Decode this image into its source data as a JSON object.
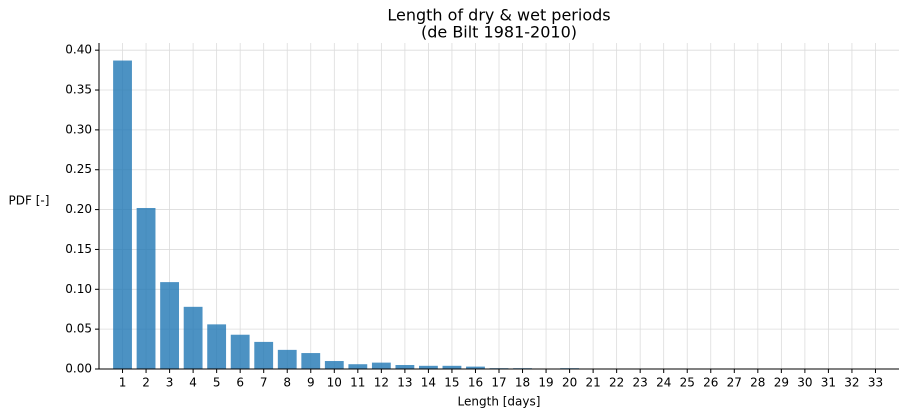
{
  "chart_data": {
    "type": "bar",
    "title": "Length of dry & wet periods",
    "subtitle": "(de Bilt 1981-2010)",
    "xlabel": "Length [days]",
    "ylabel": "PDF [-]",
    "x": [
      1,
      2,
      3,
      4,
      5,
      6,
      7,
      8,
      9,
      10,
      11,
      12,
      13,
      14,
      15,
      16,
      17,
      18,
      19,
      20,
      21,
      22,
      23,
      24,
      25,
      26,
      27,
      28,
      29,
      30,
      31,
      32,
      33
    ],
    "values": [
      0.387,
      0.202,
      0.109,
      0.078,
      0.056,
      0.043,
      0.034,
      0.024,
      0.02,
      0.01,
      0.006,
      0.008,
      0.005,
      0.004,
      0.004,
      0.003,
      0.001,
      0.001,
      0,
      0.001,
      0,
      0,
      0,
      0,
      0,
      0,
      0,
      0,
      0,
      0,
      0,
      0,
      0
    ],
    "color": "#1f77b4",
    "alpha": 0.8,
    "xlim": [
      0,
      34
    ],
    "xticks": [
      1,
      2,
      3,
      4,
      5,
      6,
      7,
      8,
      9,
      10,
      11,
      12,
      13,
      14,
      15,
      16,
      17,
      18,
      19,
      20,
      21,
      22,
      23,
      24,
      25,
      26,
      27,
      28,
      29,
      30,
      31,
      32,
      33
    ],
    "ylim": [
      0,
      0.409
    ],
    "yticks": [
      {
        "value": 0,
        "label": "0.00"
      },
      {
        "value": 0.05,
        "label": "0.05"
      },
      {
        "value": 0.1,
        "label": "0.10"
      },
      {
        "value": 0.15,
        "label": "0.15"
      },
      {
        "value": 0.2,
        "label": "0.20"
      },
      {
        "value": 0.25,
        "label": "0.25"
      },
      {
        "value": 0.3,
        "label": "0.30"
      },
      {
        "value": 0.35,
        "label": "0.35"
      },
      {
        "value": 0.4,
        "label": "0.40"
      }
    ],
    "grid": true
  }
}
